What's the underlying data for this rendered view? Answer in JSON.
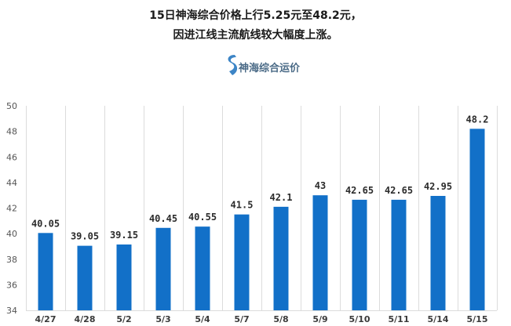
{
  "header": {
    "title_line1": "15日神海综合价格上行5.25元至48.2元，",
    "title_line2": "因进江线主流航线较大幅度上涨。"
  },
  "logo": {
    "text": "神海综合运价",
    "icon": "logo-icon",
    "color": "#3d85c6"
  },
  "chart_data": {
    "type": "bar",
    "categories": [
      "4/27",
      "4/28",
      "5/2",
      "5/3",
      "5/4",
      "5/7",
      "5/8",
      "5/9",
      "5/10",
      "5/11",
      "5/14",
      "5/15"
    ],
    "values": [
      40.05,
      39.05,
      39.15,
      40.45,
      40.55,
      41.5,
      42.1,
      43,
      42.65,
      42.65,
      42.95,
      48.2
    ],
    "value_labels": [
      "40.05",
      "39.05",
      "39.15",
      "40.45",
      "40.55",
      "41.5",
      "42.1",
      "43",
      "42.65",
      "42.65",
      "42.95",
      "48.2"
    ],
    "ylim": [
      34,
      50
    ],
    "yticks": [
      34,
      36,
      38,
      40,
      42,
      44,
      46,
      48,
      50
    ],
    "grid": "vertical",
    "bar_color": "#1270c8"
  }
}
